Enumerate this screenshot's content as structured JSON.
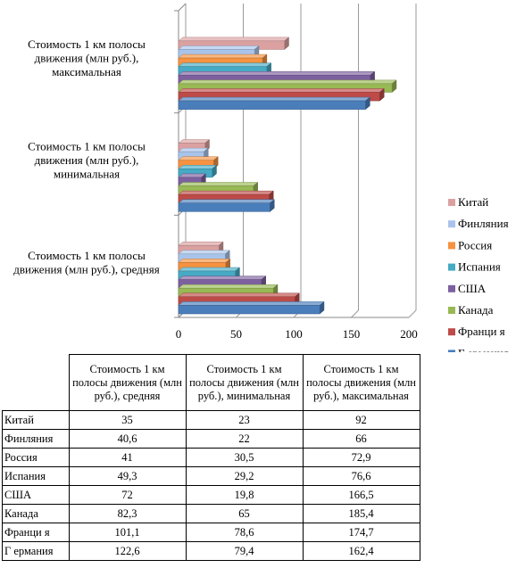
{
  "chart_data": {
    "type": "bar",
    "orientation": "horizontal",
    "style": "3d-clustered",
    "categories": [
      "Стоимость 1 км полосы движения (млн руб.), средняя",
      "Стоимость 1 км полосы движения (млн руб.), минимальная",
      "Стоимость 1 км полосы движения (млн руб.), максимальная"
    ],
    "category_display_lines": [
      [
        "Стоимость 1 км полосы",
        "движения (млн руб.), средняя"
      ],
      [
        "Стоимость 1 км полосы",
        "движения (млн руб.),",
        "минимальная"
      ],
      [
        "Стоимость 1 км полосы",
        "движения (млн руб.),",
        "максимальная"
      ]
    ],
    "series": [
      {
        "name": "Г ермания",
        "color": "#4a7ebb",
        "values": [
          122.6,
          79.4,
          162.4
        ]
      },
      {
        "name": "Франци я",
        "color": "#be4b48",
        "values": [
          101.1,
          78.6,
          174.7
        ]
      },
      {
        "name": "Канада",
        "color": "#98b954",
        "values": [
          82.3,
          65,
          185.4
        ]
      },
      {
        "name": "США",
        "color": "#7d60a0",
        "values": [
          72,
          19.8,
          166.5
        ]
      },
      {
        "name": "Испания",
        "color": "#46aac5",
        "values": [
          49.3,
          29.2,
          76.6
        ]
      },
      {
        "name": "Россия",
        "color": "#f69240",
        "values": [
          41,
          30.5,
          72.9
        ]
      },
      {
        "name": "Финляния",
        "color": "#a9c4eb",
        "values": [
          40.6,
          22,
          66
        ]
      },
      {
        "name": "Китай",
        "color": "#dba1a0",
        "values": [
          35,
          23,
          92
        ]
      }
    ],
    "legend_order": [
      "Китай",
      "Финляния",
      "Россия",
      "Испания",
      "США",
      "Канада",
      "Франци я",
      "Г ермания"
    ],
    "xlim": [
      0,
      200
    ],
    "xticks": [
      "0",
      "50",
      "100",
      "150",
      "200"
    ],
    "grid": true,
    "legend_position": "right"
  },
  "table": {
    "headers": [
      "Стоимость 1 км полосы движения (млн руб.), средняя",
      "Стоимость 1 км полосы движения (млн руб.), минимальная",
      "Стоимость 1 км полосы движения (млн руб.), максимальная"
    ],
    "rows": [
      {
        "name": "Китай",
        "values": [
          "35",
          "23",
          "92"
        ]
      },
      {
        "name": "Финляния",
        "values": [
          "40,6",
          "22",
          "66"
        ]
      },
      {
        "name": "Россия",
        "values": [
          "41",
          "30,5",
          "72,9"
        ]
      },
      {
        "name": "Испания",
        "values": [
          "49,3",
          "29,2",
          "76,6"
        ]
      },
      {
        "name": "США",
        "values": [
          "72",
          "19,8",
          "166,5"
        ]
      },
      {
        "name": "Канада",
        "values": [
          "82,3",
          "65",
          "185,4"
        ]
      },
      {
        "name": "Франци я",
        "values": [
          "101,1",
          "78,6",
          "174,7"
        ]
      },
      {
        "name": "Г ермания",
        "values": [
          "122,6",
          "79,4",
          "162,4"
        ]
      }
    ]
  }
}
